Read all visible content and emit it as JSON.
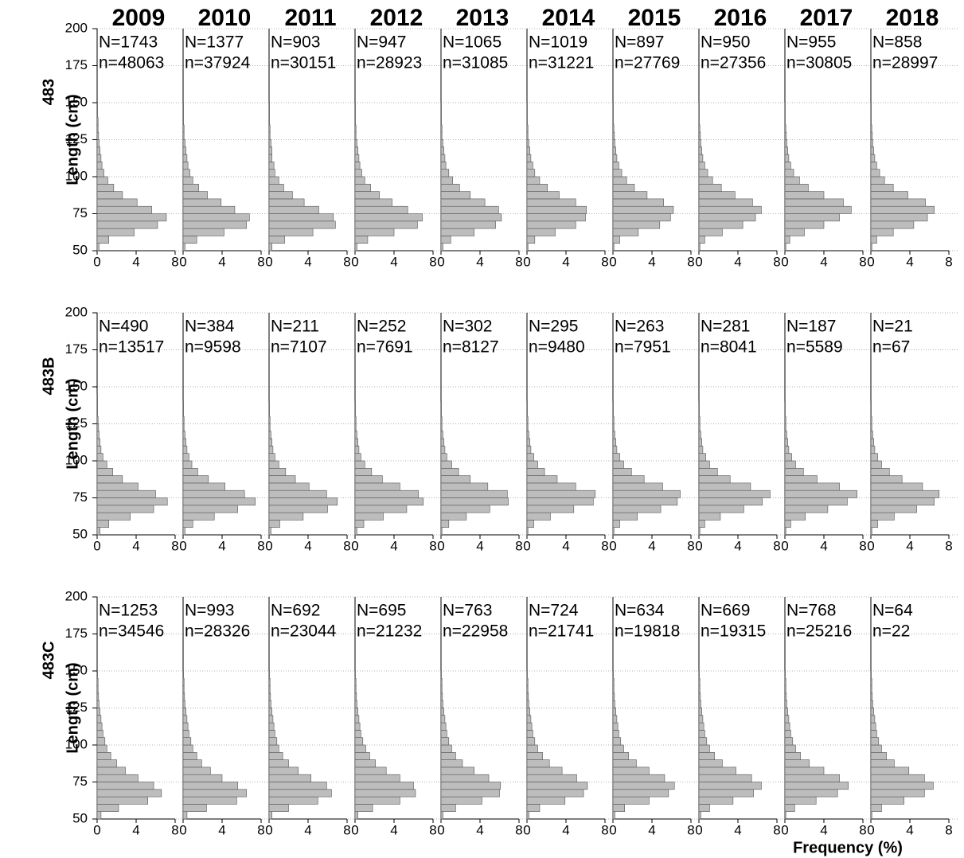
{
  "years": [
    "2009",
    "2010",
    "2011",
    "2012",
    "2013",
    "2014",
    "2015",
    "2016",
    "2017",
    "2018"
  ],
  "xlabel": "Frequency (%)",
  "chart_data": [
    {
      "type": "histogram",
      "row_label": "483",
      "ylabel": "Length (cm)",
      "ylim": [
        50,
        200
      ],
      "yticks": [
        50,
        75,
        100,
        125,
        150,
        175,
        200
      ],
      "xlim": [
        0,
        8
      ],
      "xticks": [
        0,
        4,
        8
      ],
      "grid": true,
      "color": "#bdbdbd",
      "bins": [
        50,
        55,
        60,
        65,
        70,
        75,
        80,
        85,
        90,
        95,
        100,
        105,
        110,
        115,
        120,
        125,
        130,
        135,
        140,
        145,
        150
      ],
      "panels": [
        {
          "N": "N=1743",
          "n": "n=48063",
          "values": [
            0.2,
            1.2,
            3.8,
            6.2,
            7.1,
            5.6,
            4.1,
            2.6,
            1.7,
            1.1,
            0.7,
            0.5,
            0.4,
            0.3,
            0.2,
            0.15,
            0.1,
            0.1,
            0.05,
            0.05
          ]
        },
        {
          "N": "N=1377",
          "n": "n=37924",
          "values": [
            0.2,
            1.4,
            4.2,
            6.5,
            6.8,
            5.3,
            3.9,
            2.5,
            1.6,
            1.0,
            0.7,
            0.5,
            0.4,
            0.3,
            0.2,
            0.1,
            0.1,
            0.05,
            0.05,
            0.05
          ]
        },
        {
          "N": "N=903",
          "n": "n=30151",
          "values": [
            0.3,
            1.6,
            4.5,
            6.8,
            6.6,
            5.1,
            3.6,
            2.4,
            1.5,
            1.0,
            0.6,
            0.5,
            0.3,
            0.3,
            0.2,
            0.1,
            0.1,
            0.05,
            0.05,
            0.05
          ]
        },
        {
          "N": "N=947",
          "n": "n=28923",
          "values": [
            0.2,
            1.3,
            4.0,
            6.4,
            6.9,
            5.4,
            3.8,
            2.5,
            1.6,
            1.0,
            0.7,
            0.5,
            0.4,
            0.3,
            0.2,
            0.1,
            0.1,
            0.05,
            0.05,
            0.05
          ]
        },
        {
          "N": "N=1065",
          "n": "n=31085",
          "values": [
            0.2,
            1.0,
            3.4,
            5.6,
            6.2,
            5.9,
            4.5,
            3.0,
            1.9,
            1.2,
            0.8,
            0.5,
            0.4,
            0.3,
            0.2,
            0.1,
            0.1,
            0.05,
            0.05,
            0.05
          ]
        },
        {
          "N": "N=1019",
          "n": "n=31221",
          "values": [
            0.1,
            0.8,
            2.9,
            5.0,
            6.0,
            6.1,
            5.0,
            3.3,
            2.1,
            1.3,
            0.8,
            0.6,
            0.4,
            0.3,
            0.2,
            0.1,
            0.1,
            0.05,
            0.05,
            0.05
          ]
        },
        {
          "N": "N=897",
          "n": "n=27769",
          "values": [
            0.1,
            0.7,
            2.6,
            4.8,
            5.9,
            6.2,
            5.2,
            3.5,
            2.2,
            1.4,
            0.9,
            0.6,
            0.4,
            0.3,
            0.2,
            0.15,
            0.1,
            0.05,
            0.05,
            0.05
          ]
        },
        {
          "N": "N=950",
          "n": "n=27356",
          "values": [
            0.1,
            0.6,
            2.4,
            4.5,
            5.8,
            6.4,
            5.5,
            3.7,
            2.3,
            1.4,
            0.9,
            0.6,
            0.4,
            0.3,
            0.2,
            0.15,
            0.1,
            0.05,
            0.05,
            0.05
          ]
        },
        {
          "N": "N=955",
          "n": "n=30805",
          "values": [
            0.1,
            0.5,
            2.0,
            4.0,
            5.6,
            6.8,
            6.0,
            4.0,
            2.4,
            1.5,
            0.9,
            0.6,
            0.4,
            0.3,
            0.2,
            0.15,
            0.1,
            0.05,
            0.05,
            0.05
          ]
        },
        {
          "N": "N=858",
          "n": "n=28997",
          "values": [
            0.1,
            0.6,
            2.3,
            4.4,
            5.8,
            6.5,
            5.6,
            3.8,
            2.3,
            1.4,
            0.9,
            0.6,
            0.4,
            0.3,
            0.2,
            0.15,
            0.1,
            0.05,
            0.05,
            0.05
          ]
        }
      ]
    },
    {
      "type": "histogram",
      "row_label": "483B",
      "ylabel": "Length (cm)",
      "ylim": [
        50,
        200
      ],
      "yticks": [
        50,
        75,
        100,
        125,
        150,
        175,
        200
      ],
      "xlim": [
        0,
        8
      ],
      "xticks": [
        0,
        4,
        8
      ],
      "grid": true,
      "color": "#bdbdbd",
      "bins": [
        50,
        55,
        60,
        65,
        70,
        75,
        80,
        85,
        90,
        95,
        100,
        105,
        110,
        115,
        120,
        125,
        130,
        135,
        140,
        145,
        150
      ],
      "panels": [
        {
          "N": "N=490",
          "n": "n=13517",
          "values": [
            0.3,
            1.2,
            3.4,
            5.8,
            7.2,
            6.0,
            4.2,
            2.6,
            1.6,
            1.0,
            0.6,
            0.4,
            0.3,
            0.2,
            0.15,
            0.1,
            0.05,
            0.05,
            0.05,
            0
          ]
        },
        {
          "N": "N=384",
          "n": "n=9598",
          "values": [
            0.2,
            1.0,
            3.2,
            5.6,
            7.4,
            6.3,
            4.3,
            2.6,
            1.5,
            0.9,
            0.6,
            0.4,
            0.3,
            0.2,
            0.1,
            0.1,
            0.05,
            0.05,
            0,
            0
          ]
        },
        {
          "N": "N=211",
          "n": "n=7107",
          "values": [
            0.2,
            1.1,
            3.5,
            6.0,
            7.0,
            5.9,
            4.1,
            2.7,
            1.7,
            1.0,
            0.6,
            0.4,
            0.3,
            0.2,
            0.1,
            0.1,
            0.05,
            0.05,
            0,
            0
          ]
        },
        {
          "N": "N=252",
          "n": "n=7691",
          "values": [
            0.2,
            0.9,
            2.9,
            5.3,
            7.0,
            6.5,
            4.6,
            2.8,
            1.7,
            1.0,
            0.6,
            0.4,
            0.3,
            0.2,
            0.1,
            0.1,
            0.05,
            0.05,
            0,
            0
          ]
        },
        {
          "N": "N=302",
          "n": "n=8127",
          "values": [
            0.1,
            0.8,
            2.6,
            5.0,
            6.9,
            6.8,
            4.8,
            3.0,
            1.8,
            1.1,
            0.6,
            0.4,
            0.3,
            0.2,
            0.1,
            0.1,
            0.05,
            0.05,
            0,
            0
          ]
        },
        {
          "N": "N=295",
          "n": "n=9480",
          "values": [
            0.1,
            0.7,
            2.4,
            4.8,
            6.8,
            7.0,
            5.0,
            3.1,
            1.8,
            1.1,
            0.7,
            0.4,
            0.3,
            0.2,
            0.1,
            0.1,
            0.05,
            0.05,
            0,
            0
          ]
        },
        {
          "N": "N=263",
          "n": "n=7951",
          "values": [
            0.1,
            0.7,
            2.5,
            4.9,
            6.6,
            6.9,
            5.1,
            3.2,
            1.9,
            1.1,
            0.7,
            0.4,
            0.3,
            0.2,
            0.1,
            0.1,
            0.05,
            0.05,
            0,
            0
          ]
        },
        {
          "N": "N=281",
          "n": "n=8041",
          "values": [
            0.1,
            0.6,
            2.2,
            4.6,
            6.5,
            7.3,
            5.3,
            3.2,
            1.9,
            1.1,
            0.7,
            0.4,
            0.3,
            0.2,
            0.1,
            0.1,
            0.05,
            0.05,
            0,
            0
          ]
        },
        {
          "N": "N=187",
          "n": "n=5589",
          "values": [
            0.1,
            0.6,
            2.1,
            4.4,
            6.4,
            7.4,
            5.6,
            3.3,
            1.9,
            1.1,
            0.7,
            0.4,
            0.3,
            0.2,
            0.1,
            0.1,
            0.05,
            0.05,
            0,
            0
          ]
        },
        {
          "N": "N=21",
          "n": "n=67",
          "values": [
            0.1,
            0.7,
            2.4,
            4.7,
            6.5,
            7.0,
            5.3,
            3.2,
            1.9,
            1.1,
            0.7,
            0.4,
            0.3,
            0.2,
            0.1,
            0.1,
            0.05,
            0.05,
            0,
            0
          ]
        }
      ]
    },
    {
      "type": "histogram",
      "row_label": "483C",
      "ylabel": "Length (cm)",
      "ylim": [
        50,
        200
      ],
      "yticks": [
        50,
        75,
        100,
        125,
        150,
        175,
        200
      ],
      "xlim": [
        0,
        8
      ],
      "xticks": [
        0,
        4,
        8
      ],
      "grid": true,
      "color": "#bdbdbd",
      "bins": [
        50,
        55,
        60,
        65,
        70,
        75,
        80,
        85,
        90,
        95,
        100,
        105,
        110,
        115,
        120,
        125,
        130,
        135,
        140,
        145,
        150
      ],
      "panels": [
        {
          "N": "N=1253",
          "n": "n=34546",
          "values": [
            0.4,
            2.2,
            5.2,
            6.6,
            5.8,
            4.2,
            2.9,
            2.0,
            1.4,
            1.0,
            0.8,
            0.6,
            0.5,
            0.4,
            0.3,
            0.2,
            0.15,
            0.1,
            0.1,
            0.05
          ]
        },
        {
          "N": "N=993",
          "n": "n=28326",
          "values": [
            0.4,
            2.4,
            5.5,
            6.5,
            5.6,
            4.0,
            2.8,
            1.9,
            1.4,
            1.0,
            0.8,
            0.6,
            0.5,
            0.4,
            0.3,
            0.2,
            0.15,
            0.1,
            0.1,
            0.05
          ]
        },
        {
          "N": "N=692",
          "n": "n=23044",
          "values": [
            0.3,
            2.0,
            5.0,
            6.4,
            5.9,
            4.3,
            3.0,
            2.0,
            1.4,
            1.0,
            0.8,
            0.6,
            0.5,
            0.4,
            0.3,
            0.2,
            0.15,
            0.1,
            0.1,
            0.05
          ]
        },
        {
          "N": "N=695",
          "n": "n=21232",
          "values": [
            0.3,
            1.8,
            4.6,
            6.2,
            6.0,
            4.6,
            3.2,
            2.1,
            1.5,
            1.1,
            0.8,
            0.6,
            0.5,
            0.4,
            0.3,
            0.2,
            0.15,
            0.1,
            0.1,
            0.05
          ]
        },
        {
          "N": "N=763",
          "n": "n=22958",
          "values": [
            0.2,
            1.5,
            4.2,
            6.0,
            6.1,
            4.9,
            3.4,
            2.2,
            1.5,
            1.1,
            0.8,
            0.6,
            0.5,
            0.4,
            0.3,
            0.2,
            0.15,
            0.1,
            0.1,
            0.05
          ]
        },
        {
          "N": "N=724",
          "n": "n=21741",
          "values": [
            0.2,
            1.3,
            3.9,
            5.8,
            6.2,
            5.1,
            3.6,
            2.3,
            1.6,
            1.1,
            0.8,
            0.6,
            0.5,
            0.4,
            0.3,
            0.2,
            0.15,
            0.1,
            0.1,
            0.05
          ]
        },
        {
          "N": "N=634",
          "n": "n=19818",
          "values": [
            0.2,
            1.2,
            3.7,
            5.7,
            6.3,
            5.3,
            3.7,
            2.4,
            1.6,
            1.1,
            0.8,
            0.6,
            0.5,
            0.4,
            0.3,
            0.2,
            0.15,
            0.1,
            0.1,
            0.05
          ]
        },
        {
          "N": "N=669",
          "n": "n=19315",
          "values": [
            0.2,
            1.1,
            3.5,
            5.6,
            6.4,
            5.4,
            3.8,
            2.4,
            1.6,
            1.1,
            0.8,
            0.6,
            0.5,
            0.4,
            0.3,
            0.2,
            0.15,
            0.1,
            0.1,
            0.05
          ]
        },
        {
          "N": "N=768",
          "n": "n=25216",
          "values": [
            0.1,
            1.0,
            3.2,
            5.4,
            6.5,
            5.6,
            4.0,
            2.5,
            1.6,
            1.1,
            0.8,
            0.6,
            0.5,
            0.4,
            0.3,
            0.2,
            0.15,
            0.1,
            0.1,
            0.05
          ]
        },
        {
          "N": "N=64",
          "n": "n=22",
          "values": [
            0.1,
            1.1,
            3.4,
            5.5,
            6.4,
            5.5,
            3.9,
            2.4,
            1.6,
            1.1,
            0.8,
            0.6,
            0.5,
            0.4,
            0.3,
            0.2,
            0.15,
            0.1,
            0.1,
            0.05
          ]
        }
      ]
    }
  ]
}
